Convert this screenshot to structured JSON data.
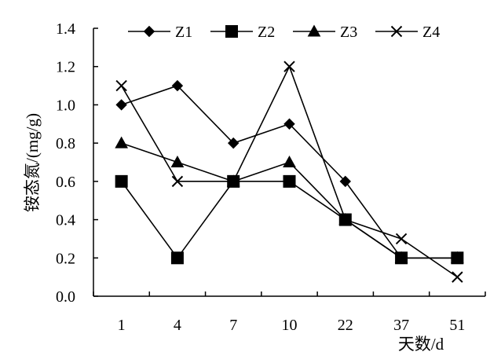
{
  "chart_data": {
    "type": "line",
    "categories": [
      "1",
      "4",
      "7",
      "10",
      "22",
      "37",
      "51"
    ],
    "xlabel": "天数/d",
    "ylabel": "铵态氮/(mg/g)",
    "ylim": [
      0,
      1.4
    ],
    "y_ticks": [
      "0.0",
      "0.2",
      "0.4",
      "0.6",
      "0.8",
      "1.0",
      "1.2",
      "1.4"
    ],
    "grid": false,
    "legend_position": "top",
    "series": [
      {
        "name": "Z1",
        "marker": "diamond",
        "values": [
          1.0,
          1.1,
          0.8,
          0.9,
          0.6,
          0.2,
          0.2
        ]
      },
      {
        "name": "Z2",
        "marker": "square",
        "values": [
          0.6,
          0.2,
          0.6,
          0.6,
          0.4,
          0.2,
          0.2
        ]
      },
      {
        "name": "Z3",
        "marker": "triangle",
        "values": [
          0.8,
          0.7,
          0.6,
          0.7,
          0.4,
          0.2,
          0.2
        ]
      },
      {
        "name": "Z4",
        "marker": "x",
        "values": [
          1.1,
          0.6,
          0.6,
          1.2,
          0.4,
          0.3,
          0.1
        ]
      }
    ],
    "colors": {
      "line": "#000000",
      "axis": "#000000"
    }
  }
}
